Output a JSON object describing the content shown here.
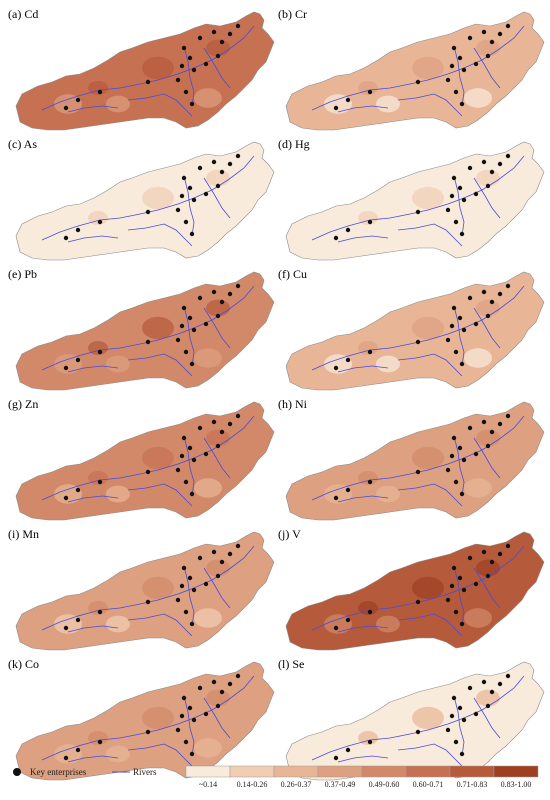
{
  "figure": {
    "panels": [
      {
        "label": "(a) Cd",
        "element": "Cd",
        "level": 0.65
      },
      {
        "label": "(b) Cr",
        "element": "Cr",
        "level": 0.26
      },
      {
        "label": "(c) As",
        "element": "As",
        "level": 0.04
      },
      {
        "label": "(d) Hg",
        "element": "Hg",
        "level": 0.04
      },
      {
        "label": "(e) Pb",
        "element": "Pb",
        "level": 0.6
      },
      {
        "label": "(f) Cu",
        "element": "Cu",
        "level": 0.3
      },
      {
        "label": "(g) Zn",
        "element": "Zn",
        "level": 0.52
      },
      {
        "label": "(h) Ni",
        "element": "Ni",
        "level": 0.46
      },
      {
        "label": "(i) Mn",
        "element": "Mn",
        "level": 0.42
      },
      {
        "label": "(j) V",
        "element": "V",
        "level": 0.78
      },
      {
        "label": "(k) Co",
        "element": "Co",
        "level": 0.46
      },
      {
        "label": "(l) Se",
        "element": "Se",
        "level": 0.1
      }
    ],
    "legend": {
      "key_enterprises": "Key enterprises",
      "rivers": "Rivers",
      "classes": [
        {
          "label": "~0.14",
          "color": "#f9ebdb"
        },
        {
          "label": "0.14-0.26",
          "color": "#f1cdb3"
        },
        {
          "label": "0.26-0.37",
          "color": "#e8b696"
        },
        {
          "label": "0.37-0.49",
          "color": "#dda080"
        },
        {
          "label": "0.49-0.60",
          "color": "#d2896a"
        },
        {
          "label": "0.60-0.71",
          "color": "#c67152"
        },
        {
          "label": "0.71-0.83",
          "color": "#b65a3c"
        },
        {
          "label": "0.83-1.00",
          "color": "#9e3f22"
        }
      ]
    },
    "colors": {
      "river": "#4b4bd6",
      "enterprise": "#111111"
    }
  }
}
